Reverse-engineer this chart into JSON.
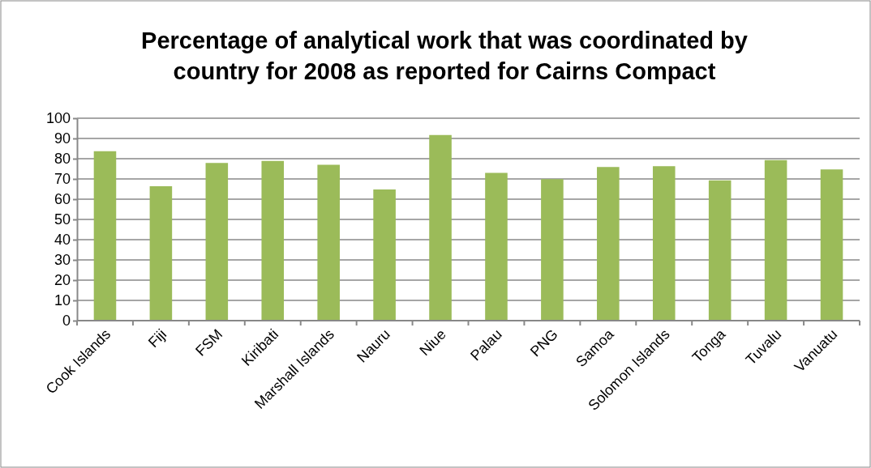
{
  "chart_data": {
    "type": "bar",
    "title": "Percentage of analytical work that was coordinated by country for 2008 as reported for Cairns Compact",
    "categories": [
      "Cook Islands",
      "Fiji",
      "FSM",
      "Kiribati",
      "Marshall Islands",
      "Nauru",
      "Niue",
      "Palau",
      "PNG",
      "Samoa",
      "Solomon Islands",
      "Tonga",
      "Tuvalu",
      "Vanuatu"
    ],
    "values": [
      83.7,
      66.4,
      77.9,
      78.9,
      77,
      64.8,
      91.7,
      73,
      69.9,
      75.9,
      76.3,
      69.3,
      79.3,
      74.7
    ],
    "color": "#9bbb59",
    "ylim": [
      0,
      100
    ],
    "yticks": [
      0,
      10,
      20,
      30,
      40,
      50,
      60,
      70,
      80,
      90,
      100
    ],
    "grid": "y"
  }
}
